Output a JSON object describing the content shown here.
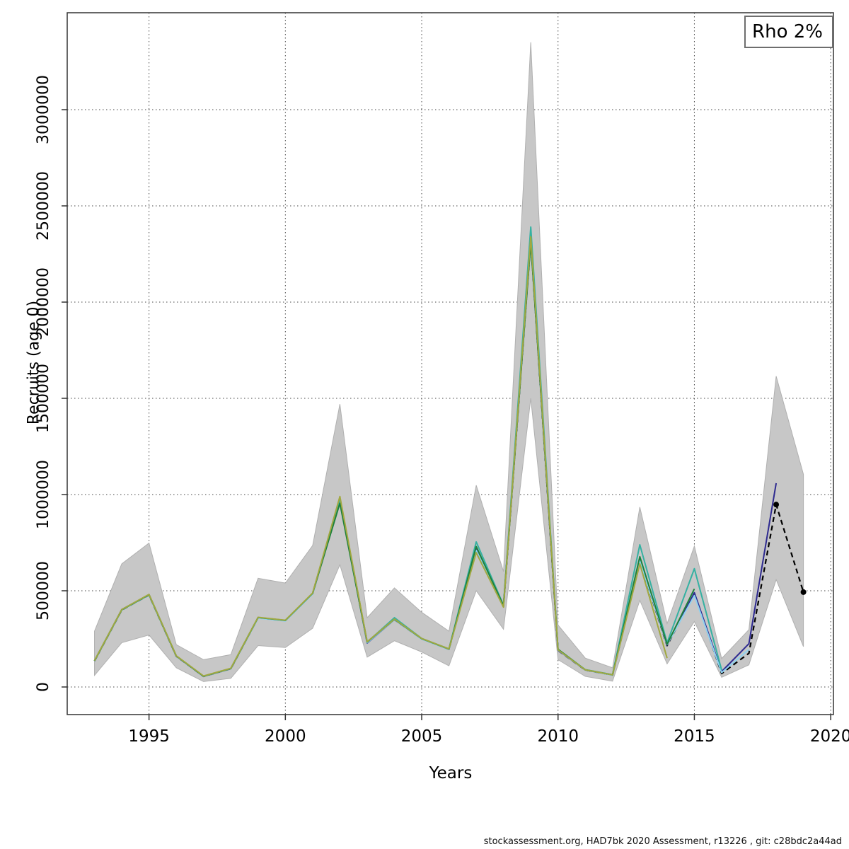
{
  "footer": {
    "credit": "stockassessment.org, HAD7bk 2020 Assessment, r13226 , git: c28bdc2a44ad"
  },
  "chart_data": {
    "type": "line",
    "title": "",
    "xlabel": "Years",
    "ylabel": "Recruits (age 0)",
    "legend": {
      "label": "Rho 2%",
      "position": "top-right"
    },
    "grid": "dotted",
    "xlim": [
      1992.0,
      2020.1
    ],
    "ylim": [
      -140000,
      3500000
    ],
    "x_ticks": [
      1995,
      2000,
      2005,
      2010,
      2015,
      2020
    ],
    "y_ticks": [
      0,
      500000,
      1000000,
      1500000,
      2000000,
      2500000,
      3000000
    ],
    "colors": {
      "band_fill": "#c7c7c7",
      "band_edge": "#b0b0b0",
      "base": "#000000",
      "peel_2018": "#2e2a90",
      "peel_2017": "#8ed1ef",
      "peel_2016": "#35b1a2",
      "peel_2015": "#1e813b",
      "peel_2014": "#a1a840"
    },
    "band": {
      "years": [
        1993,
        1994,
        1995,
        1996,
        1997,
        1998,
        1999,
        2000,
        2001,
        2002,
        2003,
        2004,
        2005,
        2006,
        2007,
        2008,
        2009,
        2010,
        2011,
        2012,
        2013,
        2014,
        2015,
        2016,
        2017,
        2018,
        2019
      ],
      "low": [
        60000,
        230000,
        270000,
        100000,
        28000,
        45000,
        215000,
        205000,
        305000,
        635000,
        155000,
        240000,
        182000,
        110000,
        500000,
        300000,
        1500000,
        142000,
        55000,
        30000,
        450000,
        120000,
        340000,
        50000,
        115000,
        558000,
        210000
      ],
      "high": [
        290000,
        640000,
        748000,
        220000,
        142000,
        168000,
        565000,
        540000,
        735000,
        1470000,
        360000,
        515000,
        388000,
        290000,
        1048000,
        600000,
        3350000,
        322000,
        150000,
        100000,
        935000,
        330000,
        732000,
        148000,
        298000,
        1615000,
        1105000
      ]
    },
    "series": [
      {
        "name": "base-2019",
        "color_key": "base",
        "dashed": true,
        "marker_years": [
          2018,
          2019
        ],
        "years": [
          1993,
          1994,
          1995,
          1996,
          1997,
          1998,
          1999,
          2000,
          2001,
          2002,
          2003,
          2004,
          2005,
          2006,
          2007,
          2008,
          2009,
          2010,
          2011,
          2012,
          2013,
          2014,
          2015,
          2016,
          2017,
          2018,
          2019
        ],
        "values": [
          135000,
          400000,
          478000,
          160000,
          55000,
          95000,
          360000,
          345000,
          485000,
          975000,
          232000,
          350000,
          250000,
          196000,
          720000,
          420000,
          2320000,
          190000,
          88000,
          62000,
          655000,
          215000,
          485000,
          70000,
          175000,
          948000,
          493000
        ]
      },
      {
        "name": "peel-2018",
        "color_key": "peel_2018",
        "dashed": false,
        "marker_years": [],
        "years": [
          1993,
          1994,
          1995,
          1996,
          1997,
          1998,
          1999,
          2000,
          2001,
          2002,
          2003,
          2004,
          2005,
          2006,
          2007,
          2008,
          2009,
          2010,
          2011,
          2012,
          2013,
          2014,
          2015,
          2016,
          2017,
          2018
        ],
        "values": [
          135000,
          402000,
          480000,
          160000,
          55000,
          95000,
          360000,
          345000,
          485000,
          975000,
          228000,
          350000,
          250000,
          196000,
          720000,
          420000,
          2330000,
          191000,
          88000,
          62000,
          660000,
          218000,
          490000,
          80000,
          225000,
          1059000
        ]
      },
      {
        "name": "peel-2017",
        "color_key": "peel_2017",
        "dashed": false,
        "marker_years": [],
        "years": [
          1993,
          1994,
          1995,
          1996,
          1997,
          1998,
          1999,
          2000,
          2001,
          2002,
          2003,
          2004,
          2005,
          2006,
          2007,
          2008,
          2009,
          2010,
          2011,
          2012,
          2013,
          2014,
          2015,
          2016,
          2017
        ],
        "values": [
          135000,
          400000,
          478000,
          160000,
          55000,
          95000,
          358000,
          343000,
          483000,
          975000,
          230000,
          350000,
          249000,
          195000,
          710000,
          418000,
          2360000,
          192000,
          88000,
          61000,
          655000,
          220000,
          475000,
          75000,
          195000
        ]
      },
      {
        "name": "peel-2016",
        "color_key": "peel_2016",
        "dashed": false,
        "marker_years": [],
        "years": [
          1993,
          1994,
          1995,
          1996,
          1997,
          1998,
          1999,
          2000,
          2001,
          2002,
          2003,
          2004,
          2005,
          2006,
          2007,
          2008,
          2009,
          2010,
          2011,
          2012,
          2013,
          2014,
          2015,
          2016
        ],
        "values": [
          136000,
          401000,
          479000,
          161000,
          56000,
          96000,
          361000,
          346000,
          486000,
          980000,
          233000,
          360000,
          252000,
          198000,
          754000,
          425000,
          2390000,
          195000,
          90000,
          64000,
          739000,
          230000,
          615000,
          88000
        ]
      },
      {
        "name": "peel-2015",
        "color_key": "peel_2015",
        "dashed": false,
        "marker_years": [],
        "years": [
          1993,
          1994,
          1995,
          1996,
          1997,
          1998,
          1999,
          2000,
          2001,
          2002,
          2003,
          2004,
          2005,
          2006,
          2007,
          2008,
          2009,
          2010,
          2011,
          2012,
          2013,
          2014,
          2015
        ],
        "values": [
          136000,
          401000,
          480000,
          161000,
          56000,
          96000,
          361000,
          346000,
          487000,
          955000,
          234000,
          352000,
          251000,
          197000,
          730000,
          422000,
          2310000,
          196000,
          89000,
          63000,
          677000,
          222000,
          510000
        ]
      },
      {
        "name": "peel-2014",
        "color_key": "peel_2014",
        "dashed": false,
        "marker_years": [],
        "years": [
          1993,
          1994,
          1995,
          1996,
          1997,
          1998,
          1999,
          2000,
          2001,
          2002,
          2003,
          2004,
          2005,
          2006,
          2007,
          2008,
          2009,
          2010,
          2011,
          2012,
          2013,
          2014
        ],
        "values": [
          137000,
          402000,
          481000,
          162000,
          57000,
          97000,
          362000,
          347000,
          488000,
          990000,
          235000,
          353000,
          252000,
          198000,
          698000,
          415000,
          2340000,
          193000,
          89000,
          63000,
          640000,
          150000
        ]
      }
    ]
  }
}
